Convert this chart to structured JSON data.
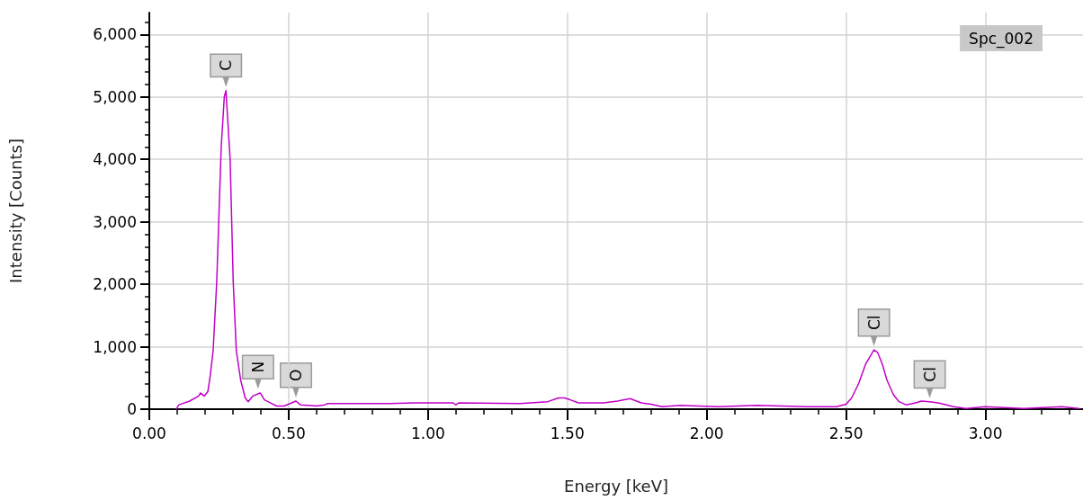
{
  "chart_data": {
    "type": "line",
    "xlabel": "Energy [keV]",
    "ylabel": "Intensity [Counts]",
    "xlim": [
      0,
      3.35
    ],
    "ylim": [
      0,
      6350
    ],
    "xticks": [
      {
        "value": 0,
        "label": "0.00"
      },
      {
        "value": 0.5,
        "label": "0.50"
      },
      {
        "value": 1,
        "label": "1.00"
      },
      {
        "value": 1.5,
        "label": "1.50"
      },
      {
        "value": 2,
        "label": "2.00"
      },
      {
        "value": 2.5,
        "label": "2.50"
      },
      {
        "value": 3,
        "label": "3.00"
      }
    ],
    "yticks": [
      0,
      {
        "value": 1000,
        "label": "1,000"
      },
      {
        "value": 2000,
        "label": "2,000"
      },
      {
        "value": 3000,
        "label": "3,000"
      },
      {
        "value": 4000,
        "label": "4,000"
      },
      {
        "value": 5000,
        "label": "5,000"
      },
      {
        "value": 6000,
        "label": "6,000"
      }
    ],
    "grid": true,
    "marker": "none",
    "line_style": "solid",
    "series": [
      {
        "color": "#c000c8",
        "x": [
          0.097,
          0.106,
          0.145,
          0.177,
          0.184,
          0.197,
          0.21,
          0.219,
          0.229,
          0.242,
          0.258,
          0.269,
          0.275,
          0.29,
          0.301,
          0.312,
          0.328,
          0.344,
          0.355,
          0.371,
          0.398,
          0.413,
          0.435,
          0.457,
          0.484,
          0.526,
          0.542,
          0.57,
          0.6,
          0.629,
          0.64,
          0.865,
          0.95,
          1.09,
          1.1,
          1.11,
          1.33,
          1.43,
          1.468,
          1.49,
          1.51,
          1.54,
          1.565,
          1.63,
          1.68,
          1.725,
          1.765,
          1.8,
          1.84,
          1.905,
          2.04,
          2.18,
          2.36,
          2.465,
          2.5,
          2.52,
          2.545,
          2.57,
          2.6,
          2.613,
          2.63,
          2.647,
          2.67,
          2.69,
          2.715,
          2.75,
          2.77,
          2.8,
          2.83,
          2.886,
          2.93,
          3.0,
          3.137,
          3.274,
          3.335
        ],
        "values": [
          0,
          70,
          130,
          210,
          260,
          210,
          280,
          550,
          940,
          2050,
          4200,
          5000,
          5100,
          4000,
          2050,
          940,
          460,
          180,
          120,
          210,
          260,
          150,
          100,
          50,
          50,
          130,
          70,
          60,
          50,
          70,
          90,
          90,
          100,
          100,
          70,
          100,
          90,
          120,
          180,
          180,
          150,
          100,
          100,
          100,
          130,
          170,
          100,
          80,
          40,
          60,
          40,
          60,
          40,
          40,
          80,
          180,
          410,
          720,
          950,
          910,
          720,
          460,
          230,
          120,
          70,
          100,
          130,
          120,
          100,
          40,
          10,
          40,
          10,
          40,
          10
        ]
      }
    ],
    "annotations": [
      {
        "text": "C",
        "x": 0.275,
        "y": 5100
      },
      {
        "text": "N",
        "x": 0.39,
        "y": 265
      },
      {
        "text": "O",
        "x": 0.526,
        "y": 130
      },
      {
        "text": "Cl",
        "x": 2.6,
        "y": 950
      },
      {
        "text": "Cl",
        "x": 2.8,
        "y": 120
      },
      "Spc_002"
    ]
  }
}
